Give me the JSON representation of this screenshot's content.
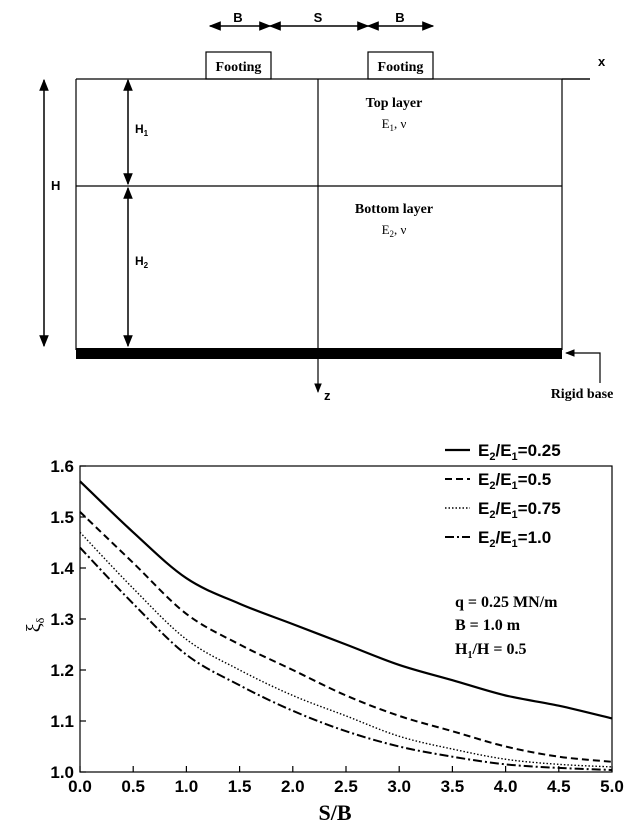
{
  "diagram": {
    "dim_b_left": "B",
    "dim_s": "S",
    "dim_b_right": "B",
    "footing_left": "Footing",
    "footing_right": "Footing",
    "axis_x": "x",
    "axis_z": "z",
    "dim_h": "H",
    "dim_h1": {
      "base": "H",
      "sub": "1"
    },
    "dim_h2": {
      "base": "H",
      "sub": "2"
    },
    "top_layer_title": "Top layer",
    "top_layer_props": {
      "base": "E",
      "sub": "1",
      "rest": ", ν"
    },
    "bottom_layer_title": "Bottom layer",
    "bottom_layer_props": {
      "base": "E",
      "sub": "2",
      "rest": ", ν"
    },
    "rigid_base": "Rigid base"
  },
  "legend": [
    {
      "pre": "E",
      "s1": "2",
      "mid": "/E",
      "s2": "1",
      "post": "=0.25",
      "dash": "solid"
    },
    {
      "pre": "E",
      "s1": "2",
      "mid": "/E",
      "s2": "1",
      "post": "=0.5",
      "dash": "dashed"
    },
    {
      "pre": "E",
      "s1": "2",
      "mid": "/E",
      "s2": "1",
      "post": "=0.75",
      "dash": "dotted"
    },
    {
      "pre": "E",
      "s1": "2",
      "mid": "/E",
      "s2": "1",
      "post": "=1.0",
      "dash": "dashdot"
    }
  ],
  "params": {
    "q": "q = 0.25 MN/m",
    "b": "B = 1.0 m",
    "h_pre": "H",
    "h_sub": "1",
    "h_post": "/H = 0.5"
  },
  "chart_data": {
    "type": "line",
    "title": "",
    "xlabel": "S/B",
    "ylabel": "ξδ",
    "ylabel_base": "ξ",
    "ylabel_sub": "δ",
    "xlim": [
      0,
      5
    ],
    "ylim": [
      1.0,
      1.6
    ],
    "xticks": [
      "0.0",
      "0.5",
      "1.0",
      "1.5",
      "2.0",
      "2.5",
      "3.0",
      "3.5",
      "4.0",
      "4.5",
      "5.0"
    ],
    "yticks": [
      "1.0",
      "1.1",
      "1.2",
      "1.3",
      "1.4",
      "1.5",
      "1.6"
    ],
    "grid": false,
    "legend_position": "top-right",
    "x": [
      0,
      0.5,
      1.0,
      1.5,
      2.0,
      2.5,
      3.0,
      3.5,
      4.0,
      4.5,
      5.0
    ],
    "series": [
      {
        "name": "E2/E1=0.25",
        "style": "solid",
        "values": [
          1.57,
          1.47,
          1.38,
          1.33,
          1.29,
          1.25,
          1.21,
          1.18,
          1.15,
          1.13,
          1.105
        ]
      },
      {
        "name": "E2/E1=0.5",
        "style": "dashed",
        "values": [
          1.51,
          1.41,
          1.31,
          1.25,
          1.2,
          1.15,
          1.11,
          1.08,
          1.05,
          1.03,
          1.02
        ]
      },
      {
        "name": "E2/E1=0.75",
        "style": "dotted",
        "values": [
          1.47,
          1.36,
          1.26,
          1.2,
          1.15,
          1.11,
          1.07,
          1.045,
          1.025,
          1.015,
          1.01
        ]
      },
      {
        "name": "E2/E1=1.0",
        "style": "dashdot",
        "values": [
          1.44,
          1.33,
          1.23,
          1.17,
          1.12,
          1.08,
          1.05,
          1.03,
          1.015,
          1.008,
          1.004
        ]
      }
    ]
  }
}
